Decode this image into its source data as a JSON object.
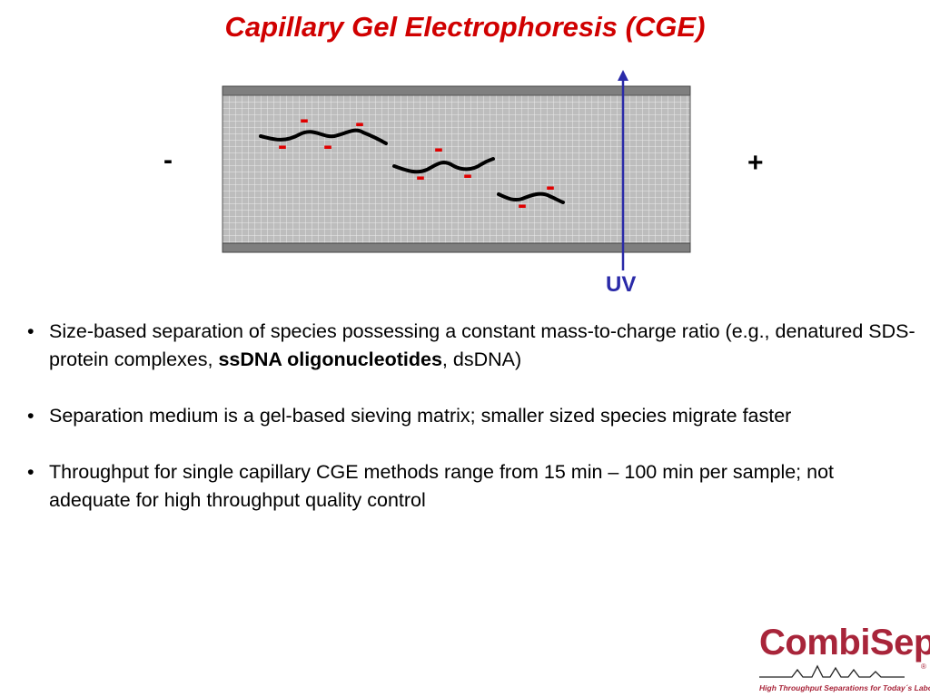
{
  "slide": {
    "title": "Capillary Gel Electrophoresis (CGE)"
  },
  "diagram": {
    "negative_electrode": "-",
    "positive_electrode": "+",
    "charge_symbol": "-",
    "detector_label": "UV",
    "colors": {
      "capillary_wall": "#7f7f7f",
      "gel": "#bdbdbd",
      "charge": "#e00000",
      "detector": "#2a2aa8"
    }
  },
  "bullets": [
    {
      "before": "Size-based separation of species possessing a constant mass-to-charge ratio (e.g., denatured SDS-protein complexes, ",
      "bold": "ssDNA oligonucleotides",
      "after": ", dsDNA)"
    },
    {
      "before": "Separation medium is a gel-based sieving matrix; smaller sized species migrate faster",
      "bold": "",
      "after": ""
    },
    {
      "before": "Throughput for single capillary CGE methods range from 15 min – 100 min per sample; not adequate for high throughput quality control",
      "bold": "",
      "after": ""
    }
  ],
  "logo": {
    "name": "CombiSep",
    "tagline": "High Throughput Separations for Today´s Laboratory",
    "registered": "®"
  }
}
